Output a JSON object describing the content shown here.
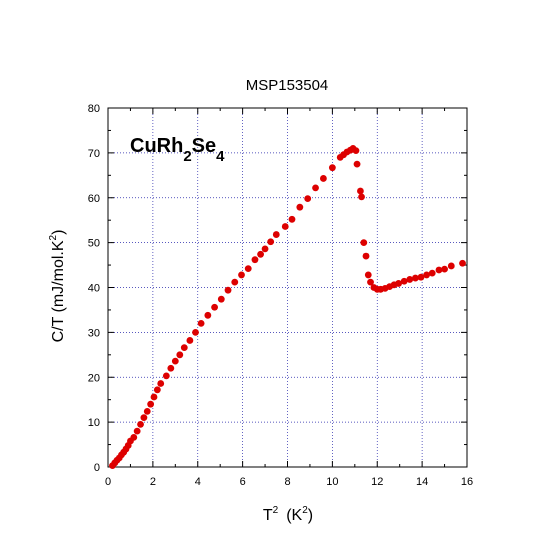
{
  "chart_data": {
    "type": "scatter",
    "title": "MSP153504",
    "xlabel": "T",
    "xlabel_sup": "2",
    "xlabel_unit_open": "(K",
    "xlabel_unit_sup": "2",
    "xlabel_unit_close": ")",
    "ylabel": "C/T  (mJ/mol.K",
    "ylabel_sup": "2",
    "ylabel_close": ")",
    "annotation": {
      "parts": [
        {
          "text": "CuRh",
          "style": "main"
        },
        {
          "text": "2",
          "style": "sub"
        },
        {
          "text": "Se",
          "style": "main"
        },
        {
          "text": "4",
          "style": "sub"
        }
      ]
    },
    "xlim": [
      0,
      16
    ],
    "ylim": [
      0,
      80
    ],
    "xticks": [
      0,
      2,
      4,
      6,
      8,
      10,
      12,
      14,
      16
    ],
    "yticks": [
      0,
      10,
      20,
      30,
      40,
      50,
      60,
      70,
      80
    ],
    "marker_color": "#dd0000",
    "grid": true,
    "series": [
      {
        "name": "CuRh2Se4",
        "points": [
          [
            0.2,
            0.3
          ],
          [
            0.3,
            0.9
          ],
          [
            0.4,
            1.5
          ],
          [
            0.5,
            2.0
          ],
          [
            0.6,
            2.7
          ],
          [
            0.7,
            3.3
          ],
          [
            0.8,
            4.0
          ],
          [
            0.9,
            4.8
          ],
          [
            1.0,
            5.8
          ],
          [
            1.15,
            6.6
          ],
          [
            1.3,
            8.0
          ],
          [
            1.45,
            9.5
          ],
          [
            1.6,
            11.0
          ],
          [
            1.75,
            12.4
          ],
          [
            1.9,
            14.0
          ],
          [
            2.05,
            15.6
          ],
          [
            2.2,
            17.2
          ],
          [
            2.35,
            18.6
          ],
          [
            2.6,
            20.3
          ],
          [
            2.8,
            22.0
          ],
          [
            3.0,
            23.6
          ],
          [
            3.2,
            25.0
          ],
          [
            3.4,
            26.6
          ],
          [
            3.65,
            28.2
          ],
          [
            3.9,
            30.0
          ],
          [
            4.15,
            32.0
          ],
          [
            4.45,
            33.8
          ],
          [
            4.75,
            35.6
          ],
          [
            5.05,
            37.4
          ],
          [
            5.35,
            39.4
          ],
          [
            5.65,
            41.2
          ],
          [
            5.95,
            42.8
          ],
          [
            6.25,
            44.2
          ],
          [
            6.55,
            46.2
          ],
          [
            6.8,
            47.4
          ],
          [
            7.0,
            48.6
          ],
          [
            7.25,
            50.2
          ],
          [
            7.5,
            51.8
          ],
          [
            7.9,
            53.6
          ],
          [
            8.2,
            55.2
          ],
          [
            8.55,
            57.9
          ],
          [
            8.9,
            59.8
          ],
          [
            9.25,
            62.2
          ],
          [
            9.6,
            64.3
          ],
          [
            10.0,
            66.7
          ],
          [
            10.35,
            69.0
          ],
          [
            10.5,
            69.6
          ],
          [
            10.65,
            70.2
          ],
          [
            10.8,
            70.6
          ],
          [
            10.92,
            71.0
          ],
          [
            11.05,
            70.5
          ],
          [
            11.1,
            67.5
          ],
          [
            11.25,
            61.5
          ],
          [
            11.3,
            60.2
          ],
          [
            11.4,
            50.0
          ],
          [
            11.5,
            47.0
          ],
          [
            11.6,
            42.8
          ],
          [
            11.7,
            41.2
          ],
          [
            11.85,
            40.0
          ],
          [
            12.0,
            39.6
          ],
          [
            12.15,
            39.6
          ],
          [
            12.35,
            39.8
          ],
          [
            12.55,
            40.2
          ],
          [
            12.75,
            40.6
          ],
          [
            12.95,
            40.9
          ],
          [
            13.2,
            41.4
          ],
          [
            13.45,
            41.8
          ],
          [
            13.7,
            42.1
          ],
          [
            13.95,
            42.3
          ],
          [
            14.2,
            42.8
          ],
          [
            14.45,
            43.2
          ],
          [
            14.75,
            43.9
          ],
          [
            15.0,
            44.1
          ],
          [
            15.3,
            44.8
          ],
          [
            15.8,
            45.4
          ]
        ]
      }
    ]
  }
}
